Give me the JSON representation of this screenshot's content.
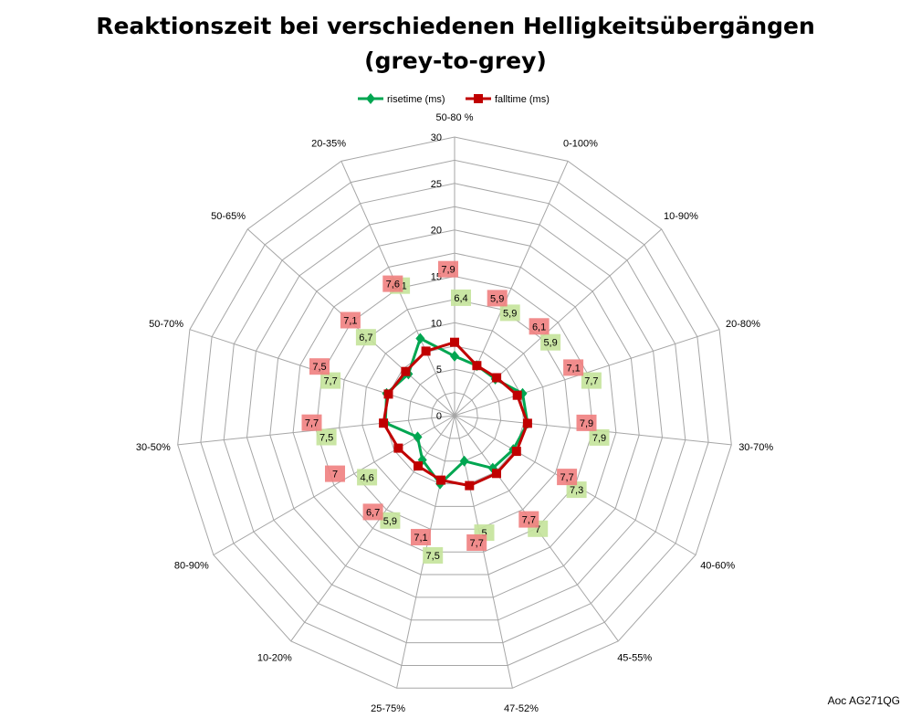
{
  "chart_data": {
    "type": "radar",
    "title_line1": "Reaktionszeit bei verschiedenen Helligkeitsübergängen",
    "title_line2": "(grey-to-grey)",
    "categories": [
      "50-80 %",
      "0-100%",
      "10-90%",
      "20-80%",
      "30-70%",
      "40-60%",
      "45-55%",
      "47-52%",
      "25-75%",
      "10-20%",
      "80-90%",
      "30-50%",
      "50-70%",
      "50-65%",
      "20-35%"
    ],
    "rlim": [
      0,
      30
    ],
    "ticks": [
      "0",
      "5",
      "10",
      "15",
      "20",
      "25",
      "30"
    ],
    "grid": true,
    "legend_position": "top",
    "series": [
      {
        "name": "risetime (ms)",
        "color": "#00a651",
        "marker": "diamond",
        "values": [
          6.4,
          5.9,
          5.9,
          7.7,
          7.9,
          7.3,
          7.0,
          5.0,
          7.5,
          5.9,
          4.6,
          7.5,
          7.7,
          6.7,
          9.1
        ],
        "labels": [
          "6,4",
          "5,9",
          "5,9",
          "7,7",
          "7,9",
          "7,3",
          "7",
          "5",
          "7,5",
          "5,9",
          "4,6",
          "7,5",
          "7,7",
          "6,7",
          "9,1"
        ],
        "label_bg": "#c4e39a"
      },
      {
        "name": "falltime (ms)",
        "color": "#c00000",
        "marker": "square",
        "values": [
          7.9,
          5.9,
          6.1,
          7.1,
          7.9,
          7.7,
          7.7,
          7.7,
          7.1,
          6.7,
          7.0,
          7.7,
          7.5,
          7.1,
          7.6
        ],
        "labels": [
          "7,9",
          "5,9",
          "6,1",
          "7,1",
          "7,9",
          "7,7",
          "7,7",
          "7,7",
          "7,1",
          "6,7",
          "7",
          "7,7",
          "7,5",
          "7,1",
          "7,6"
        ],
        "label_bg": "#f08080"
      }
    ]
  },
  "footer": {
    "text": "Aoc AG271QG"
  }
}
